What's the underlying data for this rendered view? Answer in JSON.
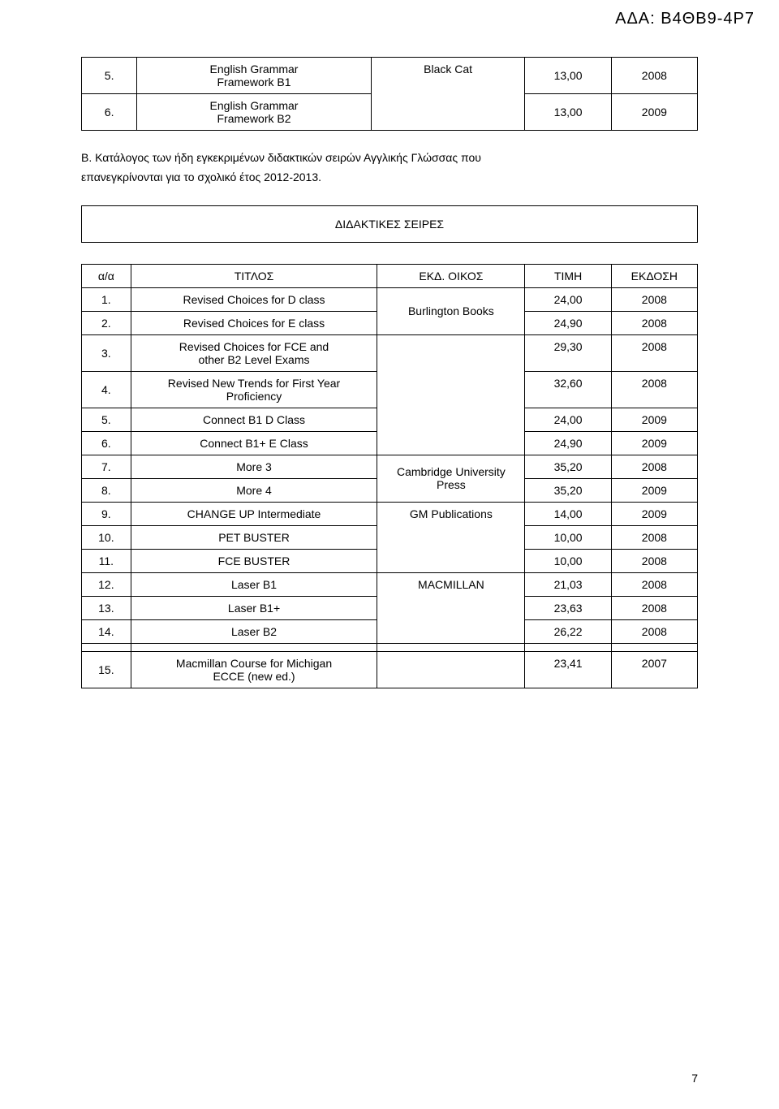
{
  "header": {
    "code": "ΑΔΑ: Β4ΘΒ9-4Ρ7"
  },
  "t1": {
    "rows": [
      {
        "n": "5.",
        "title_a": "English Grammar",
        "title_b": "Framework B1",
        "pub": "Black Cat",
        "price": "13,00",
        "year": "2008"
      },
      {
        "n": "6.",
        "title_a": "English Grammar",
        "title_b": "Framework B2",
        "pub": "",
        "price": "13,00",
        "year": "2009"
      }
    ]
  },
  "para": {
    "text_a": "B.   Κατάλογος  των  ήδη  εγκεκριμένων  διδακτικών  σειρών  Αγγλικής  Γλώσσας  που",
    "text_b": "επανεγκρίνονται για το σχολικό έτος 2012-2013."
  },
  "series": {
    "title": "ΔΙΔΑΚΤΙΚΕΣ ΣΕΙΡΕΣ"
  },
  "t2": {
    "header": {
      "c1": "α/α",
      "c2": "ΤΙΤΛΟΣ",
      "c3": "ΕΚΔ. ΟΙΚΟΣ",
      "c4": "ΤΙΜΗ",
      "c5": "ΕΚΔΟΣΗ"
    },
    "g1": {
      "pub": "Burlington Books",
      "r1": {
        "n": "1.",
        "title": "Revised Choices for D class",
        "price": "24,00",
        "year": "2008"
      },
      "r2": {
        "n": "2.",
        "title": "Revised Choices for E class",
        "price": "24,90",
        "year": "2008"
      }
    },
    "g2": {
      "r3": {
        "n": "3.",
        "title_a": "Revised Choices for FCE and",
        "title_b": "other B2 Level Exams",
        "price": "29,30",
        "year": "2008"
      },
      "r4": {
        "n": "4.",
        "title_a": "Revised New Trends for First Year",
        "title_b": "Proficiency",
        "price": "32,60",
        "year": "2008"
      },
      "r5": {
        "n": "5.",
        "title": "Connect B1 D Class",
        "price": "24,00",
        "year": "2009"
      },
      "r6": {
        "n": "6.",
        "title": "Connect B1+ E Class",
        "price": "24,90",
        "year": "2009"
      }
    },
    "g3": {
      "pub_a": "Cambridge University",
      "pub_b": "Press",
      "r7": {
        "n": "7.",
        "title": "More 3",
        "price": "35,20",
        "year": "2008"
      },
      "r8": {
        "n": "8.",
        "title": "More 4",
        "price": "35,20",
        "year": "2009"
      }
    },
    "g4": {
      "pub": "GM Publications",
      "r9": {
        "n": "9.",
        "title": "CHANGE UP Intermediate",
        "price": "14,00",
        "year": "2009"
      },
      "r10": {
        "n": "10.",
        "title": "PET BUSTER",
        "price": "10,00",
        "year": "2008"
      },
      "r11": {
        "n": "11.",
        "title": "FCE BUSTER",
        "price": "10,00",
        "year": "2008"
      }
    },
    "g5": {
      "pub": "MACMILLAN",
      "r12": {
        "n": "12.",
        "title": "Laser B1",
        "price": "21,03",
        "year": "2008"
      },
      "r13": {
        "n": "13.",
        "title": "Laser B1+",
        "price": "23,63",
        "year": "2008"
      },
      "r14": {
        "n": "14.",
        "title": "Laser B2",
        "price": "26,22",
        "year": "2008"
      }
    },
    "g6": {
      "r15": {
        "n": "15.",
        "title_a": "Macmillan Course for Michigan",
        "title_b": "ECCE (new ed.)",
        "price": "23,41",
        "year": "2007"
      }
    }
  },
  "page_number": "7"
}
